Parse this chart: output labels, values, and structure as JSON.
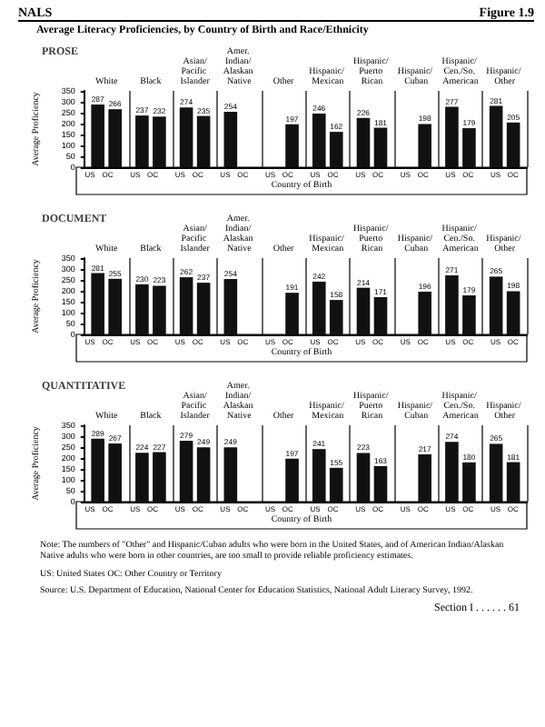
{
  "chart_data": [
    {
      "type": "bar",
      "title": "Average Literacy Proficiencies, by Country of Birth and Race/Ethnicity",
      "subtitle": "PROSE",
      "xlabel": "Country of Birth",
      "ylabel": "Average Proficiency",
      "annotations": [
        "NALS",
        "Figure 1.9"
      ],
      "categories": [
        "White",
        "Black",
        "Asian/Pacific Islander",
        "Amer. Indian/ Alaskan Native",
        "Other",
        "Hispanic/ Mexican",
        "Hispanic/ Puerto Rican",
        "Hispanic/ Cuban",
        "Hispanic/ Cen./So. American",
        "Hispanic/ Other"
      ],
      "series": [
        {
          "name": "US",
          "color": "#111111",
          "values": [
            287,
            237,
            274,
            254,
            null,
            246,
            226,
            null,
            277,
            281
          ]
        },
        {
          "name": "OC",
          "color": "#111111",
          "values": [
            266,
            232,
            235,
            null,
            197,
            162,
            181,
            198,
            179,
            205
          ]
        }
      ],
      "ylim": [
        0,
        350
      ],
      "yticks": [
        0,
        50,
        100,
        150,
        200,
        250,
        300,
        350
      ],
      "data_labels": true,
      "grid": "x"
    },
    {
      "type": "bar",
      "title": "DOCUMENT",
      "xlabel": "Country of Birth",
      "ylabel": "Average Proficiency",
      "categories": [
        "White",
        "Black",
        "Asian/Pacific Islander",
        "Amer. Indian/ Alaskan Native",
        "Other",
        "Hispanic/ Mexican",
        "Hispanic/ Puerto Rican",
        "Hispanic/ Cuban",
        "Hispanic/ Cen./So. American",
        "Hispanic/ Other"
      ],
      "series": [
        {
          "name": "US",
          "color": "#111111",
          "values": [
            281,
            230,
            262,
            254,
            null,
            242,
            214,
            null,
            271,
            265
          ]
        },
        {
          "name": "OC",
          "color": "#111111",
          "values": [
            255,
            223,
            237,
            null,
            191,
            158,
            171,
            196,
            179,
            198
          ]
        }
      ],
      "ylim": [
        0,
        350
      ],
      "yticks": [
        0,
        50,
        100,
        150,
        200,
        250,
        300,
        350
      ],
      "data_labels": true,
      "grid": "x"
    },
    {
      "type": "bar",
      "title": "QUANTITATIVE",
      "xlabel": "Country of Birth",
      "ylabel": "Average Proficiency",
      "annotations": [
        "Note: The numbers of \"Other\" and Hispanic/Cuban adults who were born in the United States, and of American Indian/Alaskan Native adults who were born in other countries, are too small to provide reliable proficiency estimates.",
        "US: United States    OC: Other Country or Territory",
        "Source: U.S. Department of Education, National Center for Education Statistics, National Adult Literacy Survey, 1992.",
        "Section I . . . . . . 61"
      ],
      "categories": [
        "White",
        "Black",
        "Asian/Pacific Islander",
        "Amer. Indian/ Alaskan Native",
        "Other",
        "Hispanic/ Mexican",
        "Hispanic/ Puerto Rican",
        "Hispanic/ Cuban",
        "Hispanic/ Cen./So. American",
        "Hispanic/ Other"
      ],
      "series": [
        {
          "name": "US",
          "color": "#111111",
          "values": [
            289,
            224,
            279,
            249,
            null,
            241,
            223,
            null,
            274,
            265
          ]
        },
        {
          "name": "OC",
          "color": "#111111",
          "values": [
            267,
            227,
            249,
            null,
            197,
            155,
            163,
            217,
            180,
            181
          ]
        }
      ],
      "ylim": [
        0,
        350
      ],
      "yticks": [
        0,
        50,
        100,
        150,
        200,
        250,
        300,
        350
      ],
      "data_labels": true,
      "grid": "x"
    }
  ]
}
